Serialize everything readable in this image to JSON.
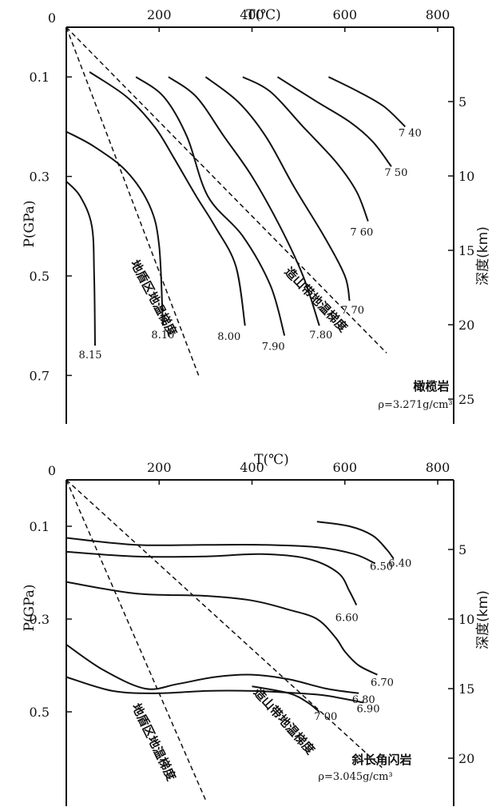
{
  "chart_data": [
    {
      "type": "line",
      "xlabel": "T(℃)",
      "ylabel_left": "P(GPa)",
      "ylabel_right": "深度(km)",
      "xlim": [
        0,
        800
      ],
      "ylim": [
        0,
        0.75
      ],
      "x_ticks": [
        "0",
        "200",
        "400",
        "600",
        "800"
      ],
      "y_ticks": [
        "0.1",
        "0.3",
        "0.5",
        "0.7"
      ],
      "y_tick_values": [
        0.1,
        0.3,
        0.5,
        0.7
      ],
      "depth_ticks": [
        "5",
        "10",
        "15",
        "20",
        "25"
      ],
      "depth_values": [
        5,
        10,
        15,
        20,
        25
      ],
      "rock": "橄榄岩",
      "density": "ρ=3.271g/cm³",
      "gradients": [
        {
          "label": "地盾区地温梯度",
          "points": [
            [
              0,
              0
            ],
            [
              285,
              0.7
            ]
          ]
        },
        {
          "label": "造山带地温梯度",
          "points": [
            [
              0,
              0
            ],
            [
              690,
              0.655
            ]
          ]
        }
      ],
      "series": [
        {
          "label": "7 40",
          "points": [
            [
              565,
              0.1
            ],
            [
              630,
              0.13
            ],
            [
              685,
              0.16
            ],
            [
              730,
              0.2
            ]
          ]
        },
        {
          "label": "7 50",
          "points": [
            [
              455,
              0.1
            ],
            [
              540,
              0.15
            ],
            [
              610,
              0.19
            ],
            [
              660,
              0.23
            ],
            [
              700,
              0.28
            ]
          ]
        },
        {
          "label": "7 60",
          "points": [
            [
              380,
              0.1
            ],
            [
              440,
              0.13
            ],
            [
              510,
              0.2
            ],
            [
              580,
              0.27
            ],
            [
              625,
              0.33
            ],
            [
              650,
              0.39
            ]
          ]
        },
        {
          "label": "7 70",
          "points": [
            [
              300,
              0.1
            ],
            [
              370,
              0.15
            ],
            [
              430,
              0.22
            ],
            [
              490,
              0.32
            ],
            [
              555,
              0.42
            ],
            [
              600,
              0.5
            ],
            [
              610,
              0.55
            ]
          ]
        },
        {
          "label": "7.80",
          "points": [
            [
              220,
              0.1
            ],
            [
              280,
              0.14
            ],
            [
              340,
              0.22
            ],
            [
              400,
              0.3
            ],
            [
              460,
              0.4
            ],
            [
              510,
              0.5
            ],
            [
              545,
              0.6
            ]
          ]
        },
        {
          "label": "7.90",
          "points": [
            [
              150,
              0.1
            ],
            [
              210,
              0.14
            ],
            [
              260,
              0.22
            ],
            [
              305,
              0.34
            ],
            [
              380,
              0.42
            ],
            [
              440,
              0.52
            ],
            [
              470,
              0.62
            ]
          ]
        },
        {
          "label": "8.00",
          "points": [
            [
              50,
              0.09
            ],
            [
              130,
              0.14
            ],
            [
              190,
              0.2
            ],
            [
              230,
              0.26
            ],
            [
              280,
              0.34
            ],
            [
              320,
              0.4
            ],
            [
              365,
              0.48
            ],
            [
              385,
              0.6
            ]
          ]
        },
        {
          "label": "8.10",
          "points": [
            [
              0,
              0.21
            ],
            [
              60,
              0.24
            ],
            [
              130,
              0.29
            ],
            [
              180,
              0.36
            ],
            [
              200,
              0.44
            ],
            [
              208,
              0.6
            ]
          ]
        },
        {
          "label": "8.15",
          "points": [
            [
              0,
              0.31
            ],
            [
              30,
              0.34
            ],
            [
              55,
              0.4
            ],
            [
              60,
              0.5
            ],
            [
              62,
              0.64
            ]
          ]
        }
      ]
    },
    {
      "type": "line",
      "xlabel": "T(℃)",
      "ylabel_left": "P(GPa)",
      "ylabel_right": "深度(km)",
      "xlim": [
        0,
        800
      ],
      "ylim": [
        0,
        0.65
      ],
      "x_ticks": [
        "0",
        "200",
        "400",
        "600",
        "800"
      ],
      "y_ticks": [
        "0.1",
        "0.3",
        "0.5"
      ],
      "y_tick_values": [
        0.1,
        0.3,
        0.5
      ],
      "depth_ticks": [
        "5",
        "10",
        "15",
        "20"
      ],
      "depth_values": [
        5,
        10,
        15,
        20
      ],
      "rock": "斜长角闪岩",
      "density": "ρ=3.045g/cm³",
      "gradients": [
        {
          "label": "地盾区地温梯度",
          "points": [
            [
              0,
              0
            ],
            [
              300,
              0.69
            ]
          ]
        },
        {
          "label": "造山带地温梯度",
          "points": [
            [
              0,
              0
            ],
            [
              680,
              0.62
            ]
          ]
        }
      ],
      "series": [
        {
          "label": "6.40",
          "points": [
            [
              540,
              0.09
            ],
            [
              610,
              0.1
            ],
            [
              660,
              0.12
            ],
            [
              690,
              0.15
            ],
            [
              705,
              0.17
            ]
          ]
        },
        {
          "label": "6.50",
          "points": [
            [
              0,
              0.125
            ],
            [
              150,
              0.14
            ],
            [
              300,
              0.14
            ],
            [
              420,
              0.14
            ],
            [
              540,
              0.145
            ],
            [
              620,
              0.16
            ],
            [
              665,
              0.18
            ]
          ]
        },
        {
          "label": "6.60",
          "points": [
            [
              0,
              0.155
            ],
            [
              150,
              0.165
            ],
            [
              300,
              0.165
            ],
            [
              420,
              0.16
            ],
            [
              520,
              0.17
            ],
            [
              585,
              0.2
            ],
            [
              610,
              0.24
            ],
            [
              625,
              0.27
            ]
          ]
        },
        {
          "label": "6.70",
          "points": [
            [
              0,
              0.22
            ],
            [
              150,
              0.245
            ],
            [
              300,
              0.25
            ],
            [
              400,
              0.26
            ],
            [
              480,
              0.28
            ],
            [
              540,
              0.3
            ],
            [
              580,
              0.34
            ],
            [
              600,
              0.37
            ],
            [
              630,
              0.4
            ],
            [
              670,
              0.42
            ]
          ]
        },
        {
          "label": "6.80",
          "points": [
            [
              0,
              0.355
            ],
            [
              80,
              0.41
            ],
            [
              170,
              0.45
            ],
            [
              240,
              0.44
            ],
            [
              320,
              0.425
            ],
            [
              400,
              0.42
            ],
            [
              480,
              0.43
            ],
            [
              560,
              0.45
            ],
            [
              630,
              0.46
            ]
          ]
        },
        {
          "label": "6.90",
          "points": [
            [
              0,
              0.425
            ],
            [
              100,
              0.455
            ],
            [
              200,
              0.46
            ],
            [
              300,
              0.455
            ],
            [
              400,
              0.455
            ],
            [
              500,
              0.46
            ],
            [
              560,
              0.465
            ],
            [
              640,
              0.48
            ]
          ]
        },
        {
          "label": "7 00",
          "points": [
            [
              400,
              0.445
            ],
            [
              480,
              0.46
            ],
            [
              520,
              0.48
            ],
            [
              545,
              0.5
            ]
          ]
        }
      ]
    }
  ]
}
